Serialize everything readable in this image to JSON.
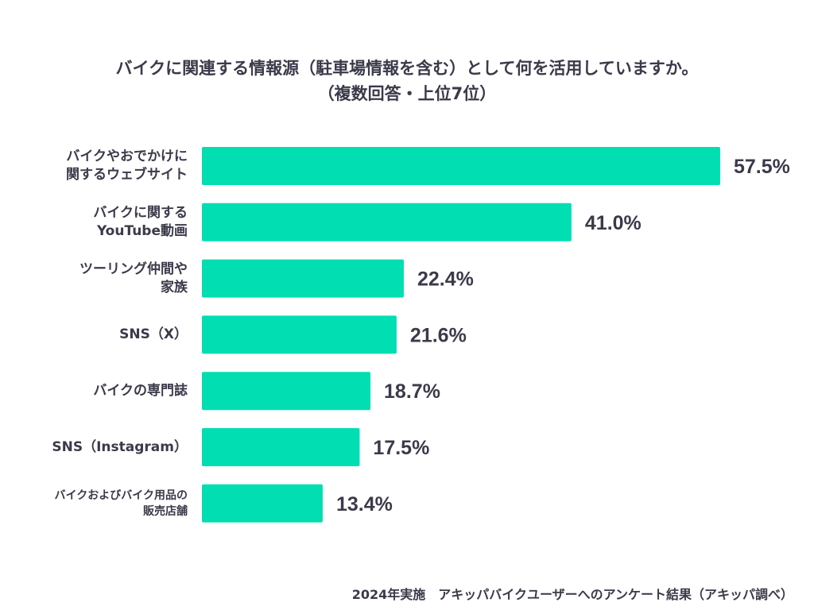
{
  "chart_data": {
    "type": "bar",
    "orientation": "horizontal",
    "title_lines": [
      "バイクに関連する情報源（駐車場情報を含む）として何を活用していますか。",
      "（複数回答・上位7位）"
    ],
    "categories": [
      "バイクやおでかけに\n関するウェブサイト",
      "バイクに関する\nYouTube動画",
      "ツーリング仲間や\n家族",
      "SNS（X）",
      "バイクの専門誌",
      "SNS（Instagram）",
      "バイクおよびバイク用品の\n販売店舗"
    ],
    "values": [
      57.5,
      41.0,
      22.4,
      21.6,
      18.7,
      17.5,
      13.4
    ],
    "value_labels": [
      "57.5%",
      "41.0%",
      "22.4%",
      "21.6%",
      "18.7%",
      "17.5%",
      "13.4%"
    ],
    "unit": "%",
    "xlim": [
      0,
      57.5
    ],
    "bar_color": "#00deb2",
    "footer": "2024年実施　アキッパバイクユーザーへのアンケート結果（アキッパ調べ）"
  }
}
